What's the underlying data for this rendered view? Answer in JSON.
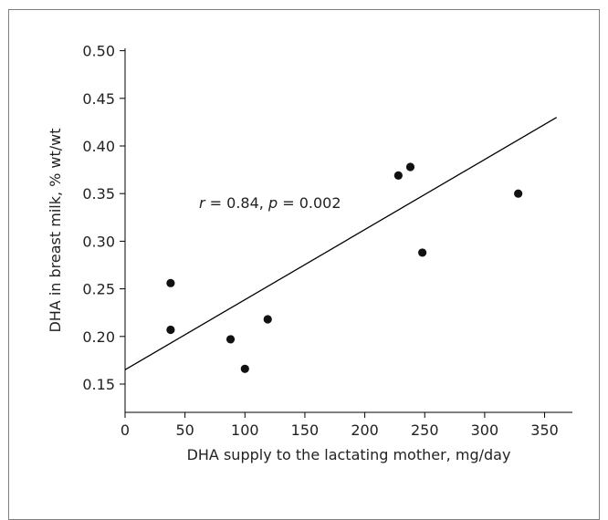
{
  "chart_data": {
    "type": "scatter",
    "xlabel": "DHA supply to the lactating mother, mg/day",
    "ylabel": "DHA in breast milk, % wt/wt",
    "xlim": [
      0,
      375
    ],
    "ylim": [
      0.115,
      0.5
    ],
    "x_ticks": [
      0,
      50,
      100,
      150,
      200,
      250,
      300,
      350
    ],
    "y_ticks": [
      0.15,
      0.2,
      0.25,
      0.3,
      0.35,
      0.4,
      0.45,
      0.5
    ],
    "x_tick_labels": [
      "0",
      "50",
      "100",
      "150",
      "200",
      "250",
      "300",
      "350"
    ],
    "y_tick_labels": [
      "0.15",
      "0.20",
      "0.25",
      "0.30",
      "0.35",
      "0.40",
      "0.45",
      "0.50"
    ],
    "grid": false,
    "series": [
      {
        "points": [
          {
            "x": 38,
            "y": 0.256
          },
          {
            "x": 38,
            "y": 0.207
          },
          {
            "x": 88,
            "y": 0.197
          },
          {
            "x": 100,
            "y": 0.166
          },
          {
            "x": 119,
            "y": 0.218
          },
          {
            "x": 228,
            "y": 0.369
          },
          {
            "x": 238,
            "y": 0.378
          },
          {
            "x": 248,
            "y": 0.288
          },
          {
            "x": 328,
            "y": 0.35
          }
        ]
      }
    ],
    "fit_line": {
      "x": [
        0,
        360
      ],
      "y": [
        0.165,
        0.43
      ]
    },
    "annotation": {
      "r_symbol": "r",
      "r_text": " = 0.84, ",
      "p_symbol": "p",
      "p_text": " = 0.002"
    }
  }
}
